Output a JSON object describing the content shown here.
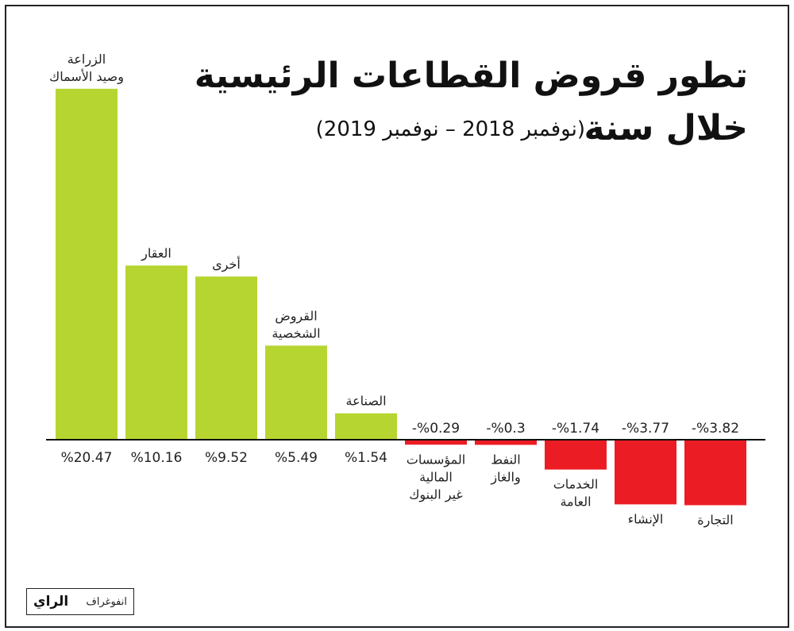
{
  "title": {
    "line1": "تطور قروض القطاعات الرئيسية",
    "line2": "خلال سنة",
    "subtitle": "(نوفمبر 2018 – نوفمبر 2019)"
  },
  "colors": {
    "positive": "#b7d531",
    "negative": "#ec1c24",
    "axis": "#111111",
    "text": "#222222"
  },
  "chart_data": {
    "type": "bar",
    "title": "تطور قروض القطاعات الرئيسية خلال سنة",
    "subtitle": "(نوفمبر 2018 – نوفمبر 2019)",
    "xlabel": "",
    "ylabel": "",
    "unit": "%",
    "ylim": [
      -3.82,
      20.47
    ],
    "grid": false,
    "legend": "none",
    "bars": [
      {
        "label": [
          "الزراعة",
          "وصيد الأسماك"
        ],
        "value": 20.47,
        "value_label": "%20.47"
      },
      {
        "label": [
          "العقار"
        ],
        "value": 10.16,
        "value_label": "%10.16"
      },
      {
        "label": [
          "أخرى"
        ],
        "value": 9.52,
        "value_label": "%9.52"
      },
      {
        "label": [
          "القروض",
          "الشخصية"
        ],
        "value": 5.49,
        "value_label": "%5.49"
      },
      {
        "label": [
          "الصناعة"
        ],
        "value": 1.54,
        "value_label": "%1.54"
      },
      {
        "label": [
          "المؤسسات",
          "المالية",
          "غير البنوك"
        ],
        "value": -0.29,
        "value_label": "-%0.29"
      },
      {
        "label": [
          "النفط",
          "والغاز"
        ],
        "value": -0.3,
        "value_label": "-%0.3"
      },
      {
        "label": [
          "الخدمات",
          "العامة"
        ],
        "value": -1.74,
        "value_label": "-%1.74"
      },
      {
        "label": [
          "الإنشاء"
        ],
        "value": -3.77,
        "value_label": "-%3.77"
      },
      {
        "label": [
          "التجارة"
        ],
        "value": -3.82,
        "value_label": "-%3.82"
      }
    ]
  },
  "footer": {
    "brand_word": "انفوغراف",
    "brand_mark": "الراي"
  }
}
